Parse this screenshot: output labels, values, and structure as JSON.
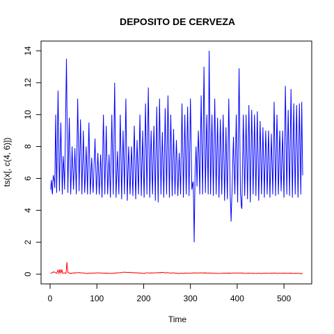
{
  "chart_data": {
    "type": "line",
    "title": "DEPOSITO DE CERVEZA",
    "xlabel": "Time",
    "ylabel": "ts(x[, c(4, 6)])",
    "xlim": [
      0,
      540
    ],
    "ylim": [
      0,
      14
    ],
    "xticks": [
      "0",
      "100",
      "200",
      "300",
      "400",
      "500"
    ],
    "yticks": [
      "0",
      "2",
      "4",
      "6",
      "8",
      "10",
      "12",
      "14"
    ],
    "x_start": 1,
    "x_end": 540,
    "grid": false,
    "legend": "none",
    "series": [
      {
        "color": "#0000ff",
        "baseline": 5.5,
        "points": [
          [
            1,
            5.3
          ],
          [
            3,
            5.9
          ],
          [
            5,
            5.0
          ],
          [
            7,
            6.2
          ],
          [
            10,
            5.4
          ],
          [
            12,
            10.0
          ],
          [
            14,
            5.1
          ],
          [
            17,
            11.5
          ],
          [
            20,
            5.2
          ],
          [
            23,
            9.5
          ],
          [
            26,
            5.0
          ],
          [
            28,
            7.4
          ],
          [
            31,
            5.3
          ],
          [
            35,
            13.5
          ],
          [
            38,
            5.1
          ],
          [
            41,
            9.8
          ],
          [
            44,
            5.0
          ],
          [
            47,
            8.0
          ],
          [
            50,
            5.3
          ],
          [
            53,
            7.9
          ],
          [
            56,
            5.0
          ],
          [
            59,
            11.0
          ],
          [
            62,
            5.2
          ],
          [
            65,
            9.7
          ],
          [
            68,
            5.0
          ],
          [
            71,
            9.0
          ],
          [
            74,
            5.1
          ],
          [
            77,
            8.0
          ],
          [
            80,
            5.0
          ],
          [
            83,
            9.5
          ],
          [
            86,
            5.0
          ],
          [
            89,
            7.3
          ],
          [
            92,
            5.1
          ],
          [
            96,
            8.5
          ],
          [
            99,
            5.0
          ],
          [
            102,
            7.6
          ],
          [
            105,
            5.0
          ],
          [
            108,
            7.5
          ],
          [
            111,
            4.8
          ],
          [
            114,
            10.0
          ],
          [
            117,
            5.0
          ],
          [
            120,
            9.3
          ],
          [
            123,
            5.0
          ],
          [
            126,
            7.5
          ],
          [
            129,
            4.8
          ],
          [
            132,
            10.0
          ],
          [
            135,
            5.0
          ],
          [
            138,
            12.0
          ],
          [
            141,
            4.8
          ],
          [
            144,
            7.7
          ],
          [
            147,
            5.0
          ],
          [
            150,
            10.0
          ],
          [
            153,
            4.7
          ],
          [
            156,
            9.0
          ],
          [
            159,
            5.0
          ],
          [
            162,
            11.0
          ],
          [
            165,
            4.6
          ],
          [
            168,
            8.0
          ],
          [
            171,
            5.0
          ],
          [
            174,
            8.0
          ],
          [
            177,
            4.9
          ],
          [
            180,
            9.3
          ],
          [
            183,
            4.7
          ],
          [
            186,
            8.4
          ],
          [
            189,
            5.0
          ],
          [
            192,
            10.0
          ],
          [
            195,
            4.9
          ],
          [
            198,
            9.0
          ],
          [
            201,
            4.8
          ],
          [
            204,
            10.7
          ],
          [
            207,
            5.0
          ],
          [
            210,
            11.7
          ],
          [
            213,
            4.8
          ],
          [
            216,
            9.0
          ],
          [
            219,
            5.0
          ],
          [
            222,
            9.3
          ],
          [
            225,
            4.6
          ],
          [
            228,
            10.5
          ],
          [
            231,
            4.5
          ],
          [
            234,
            11.0
          ],
          [
            237,
            5.0
          ],
          [
            240,
            8.9
          ],
          [
            243,
            4.8
          ],
          [
            246,
            10.4
          ],
          [
            249,
            5.0
          ],
          [
            252,
            11.2
          ],
          [
            255,
            4.8
          ],
          [
            258,
            10.0
          ],
          [
            261,
            4.9
          ],
          [
            264,
            9.1
          ],
          [
            267,
            5.0
          ],
          [
            270,
            8.4
          ],
          [
            273,
            4.9
          ],
          [
            276,
            7.6
          ],
          [
            279,
            5.0
          ],
          [
            282,
            10.7
          ],
          [
            285,
            4.8
          ],
          [
            288,
            10.0
          ],
          [
            291,
            5.0
          ],
          [
            294,
            10.5
          ],
          [
            297,
            4.9
          ],
          [
            300,
            11.0
          ],
          [
            303,
            5.3
          ],
          [
            306,
            5.8
          ],
          [
            308,
            2.0
          ],
          [
            310,
            6.5
          ],
          [
            312,
            8.0
          ],
          [
            314,
            5.5
          ],
          [
            317,
            9.0
          ],
          [
            320,
            5.0
          ],
          [
            323,
            11.2
          ],
          [
            326,
            5.0
          ],
          [
            329,
            13.0
          ],
          [
            332,
            5.1
          ],
          [
            335,
            10.0
          ],
          [
            338,
            5.0
          ],
          [
            340,
            14.0
          ],
          [
            343,
            5.0
          ],
          [
            346,
            10.0
          ],
          [
            349,
            4.9
          ],
          [
            352,
            11.0
          ],
          [
            355,
            5.0
          ],
          [
            358,
            9.8
          ],
          [
            361,
            4.8
          ],
          [
            364,
            9.7
          ],
          [
            367,
            5.0
          ],
          [
            370,
            10.0
          ],
          [
            373,
            4.6
          ],
          [
            376,
            9.2
          ],
          [
            379,
            4.7
          ],
          [
            382,
            11.0
          ],
          [
            385,
            5.0
          ],
          [
            387,
            3.3
          ],
          [
            389,
            5.2
          ],
          [
            392,
            8.6
          ],
          [
            395,
            5.0
          ],
          [
            398,
            10.0
          ],
          [
            401,
            4.5
          ],
          [
            404,
            12.9
          ],
          [
            407,
            5.0
          ],
          [
            410,
            4.1
          ],
          [
            413,
            10.0
          ],
          [
            416,
            4.9
          ],
          [
            419,
            10.0
          ],
          [
            422,
            4.7
          ],
          [
            425,
            10.6
          ],
          [
            428,
            4.5
          ],
          [
            431,
            10.3
          ],
          [
            434,
            5.0
          ],
          [
            437,
            10.0
          ],
          [
            440,
            4.9
          ],
          [
            443,
            10.2
          ],
          [
            446,
            4.6
          ],
          [
            449,
            9.6
          ],
          [
            452,
            5.0
          ],
          [
            455,
            9.2
          ],
          [
            458,
            4.8
          ],
          [
            461,
            9.0
          ],
          [
            464,
            5.0
          ],
          [
            467,
            9.0
          ],
          [
            470,
            4.8
          ],
          [
            473,
            8.8
          ],
          [
            476,
            5.0
          ],
          [
            479,
            10.8
          ],
          [
            482,
            4.9
          ],
          [
            485,
            10.0
          ],
          [
            488,
            5.0
          ],
          [
            491,
            9.0
          ],
          [
            494,
            5.2
          ],
          [
            497,
            9.0
          ],
          [
            500,
            4.8
          ],
          [
            503,
            11.8
          ],
          [
            506,
            5.0
          ],
          [
            509,
            10.3
          ],
          [
            512,
            4.9
          ],
          [
            515,
            11.6
          ],
          [
            518,
            4.8
          ],
          [
            521,
            10.7
          ],
          [
            524,
            5.0
          ],
          [
            527,
            10.6
          ],
          [
            530,
            4.8
          ],
          [
            533,
            10.7
          ],
          [
            536,
            5.0
          ],
          [
            538,
            10.8
          ],
          [
            540,
            6.2
          ]
        ]
      },
      {
        "color": "#ff0000",
        "baseline": 0.05,
        "points": [
          [
            1,
            0.05
          ],
          [
            5,
            0.1
          ],
          [
            8,
            0.15
          ],
          [
            11,
            0.1
          ],
          [
            14,
            0.05
          ],
          [
            17,
            0.25
          ],
          [
            19,
            0.05
          ],
          [
            21,
            0.3
          ],
          [
            23,
            0.05
          ],
          [
            25,
            0.3
          ],
          [
            27,
            0.05
          ],
          [
            31,
            0.08
          ],
          [
            34,
            0.05
          ],
          [
            36,
            0.75
          ],
          [
            38,
            0.1
          ],
          [
            42,
            0.05
          ],
          [
            60,
            0.1
          ],
          [
            80,
            0.05
          ],
          [
            100,
            0.08
          ],
          [
            130,
            0.05
          ],
          [
            160,
            0.12
          ],
          [
            200,
            0.06
          ],
          [
            240,
            0.1
          ],
          [
            280,
            0.05
          ],
          [
            320,
            0.08
          ],
          [
            360,
            0.05
          ],
          [
            400,
            0.07
          ],
          [
            440,
            0.05
          ],
          [
            480,
            0.06
          ],
          [
            520,
            0.05
          ],
          [
            540,
            0.04
          ]
        ]
      }
    ]
  }
}
